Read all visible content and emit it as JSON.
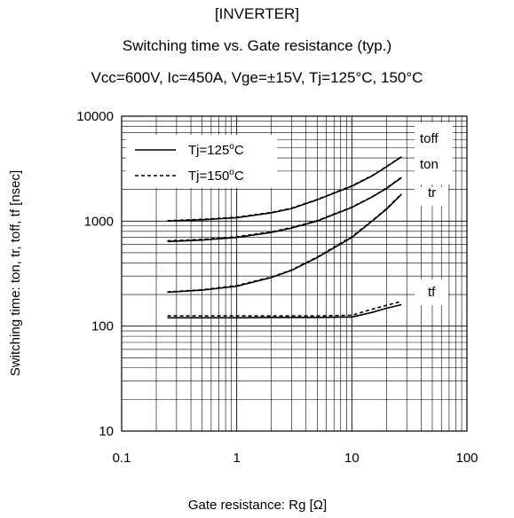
{
  "chart_data": {
    "type": "line",
    "title": "[INVERTER]",
    "subtitle": "Switching time vs. Gate resistance (typ.)",
    "conditions": "Vcc=600V, Ic=450A, Vge=±15V, Tj=125°C, 150°C",
    "xlabel": "Gate resistance: Rg [Ω]",
    "ylabel": "Switching time:  ton, tr, toff, tf  [nsec]",
    "xscale": "log",
    "yscale": "log",
    "xlim": [
      0.1,
      100
    ],
    "ylim": [
      10,
      10000
    ],
    "xticks": [
      "0.1",
      "1",
      "10",
      "100"
    ],
    "yticks": [
      "10",
      "100",
      "1000",
      "10000"
    ],
    "grid": true,
    "legend": {
      "position": "top-left",
      "entries": [
        {
          "label": "Tj=125",
          "sup": "o",
          "unit": "C",
          "style": "solid"
        },
        {
          "label": "Tj=150",
          "sup": "o",
          "unit": "C",
          "style": "dashed"
        }
      ]
    },
    "series": [
      {
        "name": "toff",
        "tj": "125°C",
        "x": [
          0.25,
          0.5,
          1,
          2,
          3,
          5,
          10,
          15,
          20,
          27
        ],
        "y": [
          1000,
          1030,
          1080,
          1200,
          1320,
          1600,
          2150,
          2700,
          3300,
          4100
        ]
      },
      {
        "name": "toff",
        "tj": "150°C",
        "x": [
          0.25,
          0.5,
          1,
          2,
          3,
          5,
          10,
          15,
          20,
          27
        ],
        "y": [
          1010,
          1040,
          1090,
          1210,
          1330,
          1610,
          2170,
          2720,
          3320,
          4120
        ]
      },
      {
        "name": "ton",
        "tj": "125°C",
        "x": [
          0.25,
          0.5,
          1,
          2,
          3,
          5,
          10,
          15,
          20,
          27
        ],
        "y": [
          640,
          660,
          700,
          780,
          860,
          1000,
          1350,
          1700,
          2050,
          2600
        ]
      },
      {
        "name": "ton",
        "tj": "150°C",
        "x": [
          0.25,
          0.5,
          1,
          2,
          3,
          5,
          10,
          15,
          20,
          27
        ],
        "y": [
          650,
          670,
          710,
          790,
          870,
          1010,
          1360,
          1710,
          2070,
          2620
        ]
      },
      {
        "name": "tr",
        "tj": "125°C",
        "x": [
          0.25,
          0.5,
          1,
          2,
          3,
          5,
          10,
          15,
          20,
          27
        ],
        "y": [
          210,
          220,
          240,
          290,
          340,
          450,
          700,
          1000,
          1300,
          1800
        ]
      },
      {
        "name": "tr",
        "tj": "150°C",
        "x": [
          0.25,
          0.5,
          1,
          2,
          3,
          5,
          10,
          15,
          20,
          27
        ],
        "y": [
          212,
          222,
          243,
          293,
          343,
          455,
          710,
          1010,
          1320,
          1820
        ]
      },
      {
        "name": "tf",
        "tj": "125°C",
        "x": [
          0.25,
          0.5,
          1,
          2,
          5,
          10,
          15,
          20,
          27
        ],
        "y": [
          120,
          120,
          120,
          121,
          121,
          122,
          135,
          148,
          160
        ]
      },
      {
        "name": "tf",
        "tj": "150°C",
        "x": [
          0.25,
          0.5,
          1,
          2,
          5,
          10,
          15,
          20,
          27
        ],
        "y": [
          125,
          125,
          125,
          125,
          125,
          127,
          145,
          158,
          172
        ]
      }
    ],
    "series_labels": [
      "toff",
      "ton",
      "tr",
      "tf"
    ]
  }
}
